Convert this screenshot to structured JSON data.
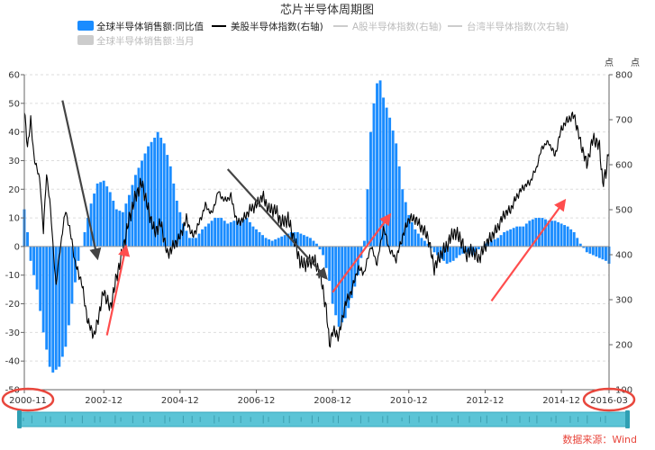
{
  "chart_data": {
    "type": "bar+line",
    "title": "芯片半导体周期图",
    "legend": [
      {
        "name": "全球半导体销售额:同比值",
        "color": "#1a8cff",
        "kind": "bar",
        "active": true
      },
      {
        "name": "美股半导体指数(右轴)",
        "color": "#000000",
        "kind": "line",
        "active": true
      },
      {
        "name": "A股半导体指数(右轴)",
        "color": "#cccccc",
        "kind": "line",
        "active": false
      },
      {
        "name": "台湾半导体指数(次右轴)",
        "color": "#cccccc",
        "kind": "line",
        "active": false
      },
      {
        "name": "全球半导体销售额:当月",
        "color": "#cccccc",
        "kind": "bar",
        "active": false
      }
    ],
    "legend_placement": "top",
    "grid": true,
    "left_axis": {
      "ylim": [
        -50,
        60
      ],
      "ticks": [
        -50,
        -40,
        -30,
        -20,
        -10,
        0,
        10,
        20,
        30,
        40,
        50,
        60
      ]
    },
    "right_axis": {
      "unit": "点",
      "ylim": [
        100,
        800
      ],
      "ticks": [
        100,
        200,
        300,
        400,
        500,
        600,
        700,
        800
      ]
    },
    "secondary_right_axis": {
      "unit": "点"
    },
    "x_axis": {
      "start": "2000-11",
      "end": "2016-03",
      "tick_labels": [
        "2000-11",
        "2002-12",
        "2004-12",
        "2006-12",
        "2008-12",
        "2010-12",
        "2012-12",
        "2014-12",
        "2016-03"
      ],
      "highlighted_labels": [
        "2000-11",
        "2016-03"
      ]
    },
    "bar_series": {
      "name": "全球半导体销售额:同比值",
      "color": "#1a8cff",
      "keyframes": [
        [
          "2000-11",
          13
        ],
        [
          "2000-12",
          5
        ],
        [
          "2001-01",
          -5
        ],
        [
          "2001-03",
          -15
        ],
        [
          "2001-05",
          -30
        ],
        [
          "2001-07",
          -42
        ],
        [
          "2001-08",
          -44
        ],
        [
          "2001-10",
          -42
        ],
        [
          "2001-12",
          -35
        ],
        [
          "2002-02",
          -20
        ],
        [
          "2002-04",
          -5
        ],
        [
          "2002-06",
          5
        ],
        [
          "2002-08",
          15
        ],
        [
          "2002-10",
          22
        ],
        [
          "2002-12",
          23
        ],
        [
          "2003-02",
          19
        ],
        [
          "2003-04",
          13
        ],
        [
          "2003-06",
          12
        ],
        [
          "2003-08",
          18
        ],
        [
          "2003-10",
          25
        ],
        [
          "2003-12",
          30
        ],
        [
          "2004-02",
          35
        ],
        [
          "2004-04",
          38
        ],
        [
          "2004-05",
          40
        ],
        [
          "2004-07",
          36
        ],
        [
          "2004-09",
          28
        ],
        [
          "2004-11",
          16
        ],
        [
          "2005-01",
          8
        ],
        [
          "2005-03",
          3
        ],
        [
          "2005-05",
          3
        ],
        [
          "2005-07",
          6
        ],
        [
          "2005-09",
          8
        ],
        [
          "2005-11",
          10
        ],
        [
          "2006-01",
          10
        ],
        [
          "2006-03",
          8
        ],
        [
          "2006-05",
          9
        ],
        [
          "2006-07",
          9
        ],
        [
          "2006-09",
          10
        ],
        [
          "2006-11",
          7
        ],
        [
          "2007-01",
          5
        ],
        [
          "2007-03",
          3
        ],
        [
          "2007-05",
          2
        ],
        [
          "2007-07",
          3
        ],
        [
          "2007-09",
          4
        ],
        [
          "2007-11",
          5
        ],
        [
          "2008-01",
          5
        ],
        [
          "2008-03",
          4
        ],
        [
          "2008-05",
          3
        ],
        [
          "2008-07",
          1
        ],
        [
          "2008-09",
          -3
        ],
        [
          "2008-11",
          -12
        ],
        [
          "2008-12",
          -20
        ],
        [
          "2009-02",
          -28
        ],
        [
          "2009-04",
          -25
        ],
        [
          "2009-06",
          -18
        ],
        [
          "2009-08",
          -10
        ],
        [
          "2009-10",
          2
        ],
        [
          "2009-11",
          20
        ],
        [
          "2009-12",
          40
        ],
        [
          "2010-01",
          50
        ],
        [
          "2010-02",
          57
        ],
        [
          "2010-03",
          58
        ],
        [
          "2010-04",
          52
        ],
        [
          "2010-06",
          45
        ],
        [
          "2010-08",
          36
        ],
        [
          "2010-10",
          20
        ],
        [
          "2010-12",
          11
        ],
        [
          "2011-02",
          6
        ],
        [
          "2011-04",
          3
        ],
        [
          "2011-06",
          1
        ],
        [
          "2011-08",
          -2
        ],
        [
          "2011-10",
          -4
        ],
        [
          "2011-12",
          -6
        ],
        [
          "2012-02",
          -5
        ],
        [
          "2012-04",
          -3
        ],
        [
          "2012-06",
          -2
        ],
        [
          "2012-08",
          -3
        ],
        [
          "2012-10",
          -1
        ],
        [
          "2012-12",
          1
        ],
        [
          "2013-02",
          2
        ],
        [
          "2013-04",
          3
        ],
        [
          "2013-06",
          5
        ],
        [
          "2013-08",
          6
        ],
        [
          "2013-10",
          7
        ],
        [
          "2013-12",
          7
        ],
        [
          "2014-02",
          9
        ],
        [
          "2014-04",
          10
        ],
        [
          "2014-06",
          10
        ],
        [
          "2014-08",
          9
        ],
        [
          "2014-10",
          9
        ],
        [
          "2014-12",
          8
        ],
        [
          "2015-02",
          7
        ],
        [
          "2015-04",
          5
        ],
        [
          "2015-06",
          1
        ],
        [
          "2015-08",
          -2
        ],
        [
          "2015-10",
          -3
        ],
        [
          "2015-12",
          -4
        ],
        [
          "2016-02",
          -5
        ],
        [
          "2016-03",
          -6
        ]
      ]
    },
    "line_series": {
      "name": "美股半导体指数(右轴)",
      "color": "#000000",
      "keyframes": [
        [
          "2000-11",
          720
        ],
        [
          "2000-12",
          640
        ],
        [
          "2001-01",
          700
        ],
        [
          "2001-02",
          620
        ],
        [
          "2001-04",
          560
        ],
        [
          "2001-05",
          450
        ],
        [
          "2001-06",
          580
        ],
        [
          "2001-07",
          520
        ],
        [
          "2001-09",
          330
        ],
        [
          "2001-10",
          400
        ],
        [
          "2001-12",
          500
        ],
        [
          "2002-02",
          430
        ],
        [
          "2002-03",
          380
        ],
        [
          "2002-05",
          340
        ],
        [
          "2002-07",
          250
        ],
        [
          "2002-09",
          220
        ],
        [
          "2002-10",
          250
        ],
        [
          "2002-12",
          320
        ],
        [
          "2003-02",
          280
        ],
        [
          "2003-04",
          350
        ],
        [
          "2003-06",
          410
        ],
        [
          "2003-08",
          480
        ],
        [
          "2003-10",
          530
        ],
        [
          "2003-12",
          560
        ],
        [
          "2004-02",
          500
        ],
        [
          "2004-04",
          450
        ],
        [
          "2004-06",
          470
        ],
        [
          "2004-08",
          400
        ],
        [
          "2004-10",
          420
        ],
        [
          "2004-12",
          440
        ],
        [
          "2005-02",
          480
        ],
        [
          "2005-04",
          440
        ],
        [
          "2005-06",
          470
        ],
        [
          "2005-08",
          510
        ],
        [
          "2005-10",
          490
        ],
        [
          "2005-12",
          540
        ],
        [
          "2006-02",
          520
        ],
        [
          "2006-04",
          530
        ],
        [
          "2006-06",
          470
        ],
        [
          "2006-08",
          480
        ],
        [
          "2006-10",
          500
        ],
        [
          "2006-12",
          510
        ],
        [
          "2007-02",
          530
        ],
        [
          "2007-04",
          500
        ],
        [
          "2007-06",
          500
        ],
        [
          "2007-08",
          470
        ],
        [
          "2007-10",
          480
        ],
        [
          "2007-12",
          430
        ],
        [
          "2008-02",
          380
        ],
        [
          "2008-04",
          380
        ],
        [
          "2008-06",
          390
        ],
        [
          "2008-08",
          360
        ],
        [
          "2008-10",
          280
        ],
        [
          "2008-11",
          200
        ],
        [
          "2008-12",
          230
        ],
        [
          "2009-02",
          220
        ],
        [
          "2009-04",
          290
        ],
        [
          "2009-06",
          320
        ],
        [
          "2009-08",
          370
        ],
        [
          "2009-10",
          360
        ],
        [
          "2009-12",
          420
        ],
        [
          "2010-02",
          380
        ],
        [
          "2010-04",
          460
        ],
        [
          "2010-06",
          410
        ],
        [
          "2010-08",
          390
        ],
        [
          "2010-10",
          440
        ],
        [
          "2010-12",
          480
        ],
        [
          "2011-02",
          480
        ],
        [
          "2011-04",
          460
        ],
        [
          "2011-06",
          440
        ],
        [
          "2011-08",
          370
        ],
        [
          "2011-10",
          400
        ],
        [
          "2011-12",
          420
        ],
        [
          "2012-02",
          450
        ],
        [
          "2012-04",
          440
        ],
        [
          "2012-06",
          400
        ],
        [
          "2012-08",
          410
        ],
        [
          "2012-10",
          390
        ],
        [
          "2012-12",
          420
        ],
        [
          "2013-02",
          440
        ],
        [
          "2013-04",
          460
        ],
        [
          "2013-06",
          490
        ],
        [
          "2013-08",
          500
        ],
        [
          "2013-10",
          530
        ],
        [
          "2013-12",
          550
        ],
        [
          "2014-02",
          560
        ],
        [
          "2014-04",
          590
        ],
        [
          "2014-06",
          640
        ],
        [
          "2014-08",
          650
        ],
        [
          "2014-10",
          620
        ],
        [
          "2014-12",
          680
        ],
        [
          "2015-02",
          700
        ],
        [
          "2015-04",
          710
        ],
        [
          "2015-06",
          650
        ],
        [
          "2015-08",
          600
        ],
        [
          "2015-10",
          660
        ],
        [
          "2015-12",
          640
        ],
        [
          "2016-01",
          560
        ],
        [
          "2016-02",
          580
        ],
        [
          "2016-03",
          640
        ]
      ]
    },
    "annotations": {
      "down_arrows": [
        {
          "from": [
            "2001-11",
            51
          ],
          "to": [
            "2002-10",
            -4
          ],
          "color": "#444444"
        },
        {
          "from": [
            "2006-03",
            27
          ],
          "to": [
            "2008-10",
            -11
          ],
          "color": "#444444"
        }
      ],
      "up_arrows": [
        {
          "from": [
            "2003-01",
            -31
          ],
          "to": [
            "2003-07",
            0
          ],
          "color": "#ff4d4d"
        },
        {
          "from": [
            "2008-12",
            -16
          ],
          "to": [
            "2010-06",
            11
          ],
          "color": "#ff4d4d"
        },
        {
          "from": [
            "2013-02",
            -19
          ],
          "to": [
            "2015-01",
            16
          ],
          "color": "#ff4d4d"
        }
      ]
    },
    "source": "数据来源：Wind"
  }
}
